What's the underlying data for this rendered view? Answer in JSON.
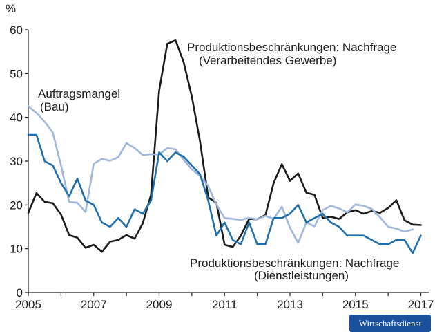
{
  "chart_data": {
    "type": "line",
    "title": "",
    "ylabel": "%",
    "xlabel": "",
    "ylim": [
      0,
      60
    ],
    "xlim": [
      2005,
      2017.3
    ],
    "y_ticks": [
      "0",
      "10",
      "20",
      "30",
      "40",
      "50",
      "60"
    ],
    "x_ticks": [
      "2005",
      "2007",
      "2009",
      "2011",
      "2013",
      "2015",
      "2017"
    ],
    "annotations": {
      "manufacturing_line1": "Produktionsbeschränkungen: Nachfrage",
      "manufacturing_line2": "(Verarbeitendes Gewerbe)",
      "construction_line1": "Auftragsmangel",
      "construction_line2": "(Bau)",
      "services_line1": "Produktionsbeschränkungen: Nachfrage",
      "services_line2": "(Dienstleistungen)"
    },
    "series": [
      {
        "name": "Produktionsbeschränkungen: Nachfrage (Verarbeitendes Gewerbe)",
        "color": "#1a1a1a",
        "x": [
          2005.0,
          2005.25,
          2005.5,
          2005.75,
          2006.0,
          2006.25,
          2006.5,
          2006.75,
          2007.0,
          2007.25,
          2007.5,
          2007.75,
          2008.0,
          2008.25,
          2008.5,
          2008.75,
          2009.0,
          2009.25,
          2009.5,
          2009.75,
          2010.0,
          2010.25,
          2010.5,
          2010.75,
          2011.0,
          2011.25,
          2011.5,
          2011.75,
          2012.0,
          2012.25,
          2012.5,
          2012.75,
          2013.0,
          2013.25,
          2013.5,
          2013.75,
          2014.0,
          2014.25,
          2014.5,
          2014.75,
          2015.0,
          2015.25,
          2015.5,
          2015.75,
          2016.0,
          2016.25,
          2016.5,
          2016.75,
          2017.0
        ],
        "y": [
          18.2,
          22.7,
          20.7,
          20.4,
          17.8,
          13.1,
          12.5,
          10.2,
          10.9,
          9.3,
          11.6,
          12.0,
          13.1,
          12.3,
          15.8,
          22.3,
          46.1,
          56.8,
          57.6,
          52.6,
          44.7,
          34.5,
          21.7,
          20.5,
          10.9,
          10.4,
          13.0,
          16.8,
          16.7,
          17.7,
          25.0,
          29.3,
          25.5,
          27.2,
          22.8,
          22.3,
          17.0,
          17.3,
          16.8,
          18.3,
          18.8,
          18.0,
          18.6,
          18.2,
          19.3,
          21.1,
          16.5,
          15.5,
          15.4
        ]
      },
      {
        "name": "Auftragsmangel (Bau)",
        "color": "#9fb7dc",
        "x": [
          2005.0,
          2005.25,
          2005.5,
          2005.75,
          2006.0,
          2006.25,
          2006.5,
          2006.75,
          2007.0,
          2007.25,
          2007.5,
          2007.75,
          2008.0,
          2008.25,
          2008.5,
          2008.75,
          2009.0,
          2009.25,
          2009.5,
          2009.75,
          2010.0,
          2010.25,
          2010.5,
          2010.75,
          2011.0,
          2011.25,
          2011.5,
          2011.75,
          2012.0,
          2012.25,
          2012.5,
          2012.75,
          2013.0,
          2013.25,
          2013.5,
          2013.75,
          2014.0,
          2014.25,
          2014.5,
          2014.75,
          2015.0,
          2015.25,
          2015.5,
          2015.75,
          2016.0,
          2016.25,
          2016.5,
          2016.75
        ],
        "y": [
          42.5,
          41.0,
          39.0,
          36.5,
          29.0,
          20.7,
          20.5,
          18.4,
          29.4,
          30.5,
          30.1,
          30.9,
          34.1,
          33.0,
          31.4,
          31.6,
          31.5,
          33.0,
          32.7,
          30.3,
          28.1,
          26.6,
          24.3,
          20.1,
          17.0,
          16.8,
          16.6,
          17.0,
          16.7,
          17.5,
          16.8,
          19.6,
          14.8,
          11.3,
          16.0,
          15.1,
          18.8,
          19.8,
          19.2,
          18.3,
          20.1,
          19.8,
          19.1,
          17.2,
          15.0,
          14.6,
          13.9,
          14.4
        ]
      },
      {
        "name": "Produktionsbeschränkungen: Nachfrage (Dienstleistungen)",
        "color": "#1f6fad",
        "x": [
          2005.0,
          2005.25,
          2005.5,
          2005.75,
          2006.0,
          2006.25,
          2006.5,
          2006.75,
          2007.0,
          2007.25,
          2007.5,
          2007.75,
          2008.0,
          2008.25,
          2008.5,
          2008.75,
          2009.0,
          2009.25,
          2009.5,
          2009.75,
          2010.0,
          2010.25,
          2010.5,
          2010.75,
          2011.0,
          2011.25,
          2011.5,
          2011.75,
          2012.0,
          2012.25,
          2012.5,
          2012.75,
          2013.0,
          2013.25,
          2013.5,
          2013.75,
          2014.0,
          2014.25,
          2014.5,
          2014.75,
          2015.0,
          2015.25,
          2015.5,
          2015.75,
          2016.0,
          2016.25,
          2016.5,
          2016.75,
          2017.0
        ],
        "y": [
          36.0,
          36.0,
          30.0,
          29.0,
          25.0,
          22.0,
          26.0,
          21.0,
          20.0,
          16.0,
          15.0,
          17.0,
          15.0,
          19.0,
          18.0,
          21.0,
          32.0,
          30.0,
          32.0,
          31.0,
          29.0,
          27.0,
          21.0,
          13.0,
          16.0,
          12.0,
          11.0,
          16.0,
          11.0,
          11.0,
          17.0,
          17.0,
          18.0,
          20.0,
          16.0,
          17.0,
          18.0,
          16.0,
          15.0,
          13.0,
          13.0,
          13.0,
          12.0,
          11.0,
          11.0,
          12.0,
          12.0,
          9.0,
          13.0
        ]
      }
    ]
  },
  "brand": {
    "label": "Wirtschaftsdienst",
    "color": "#1a4f9c"
  }
}
